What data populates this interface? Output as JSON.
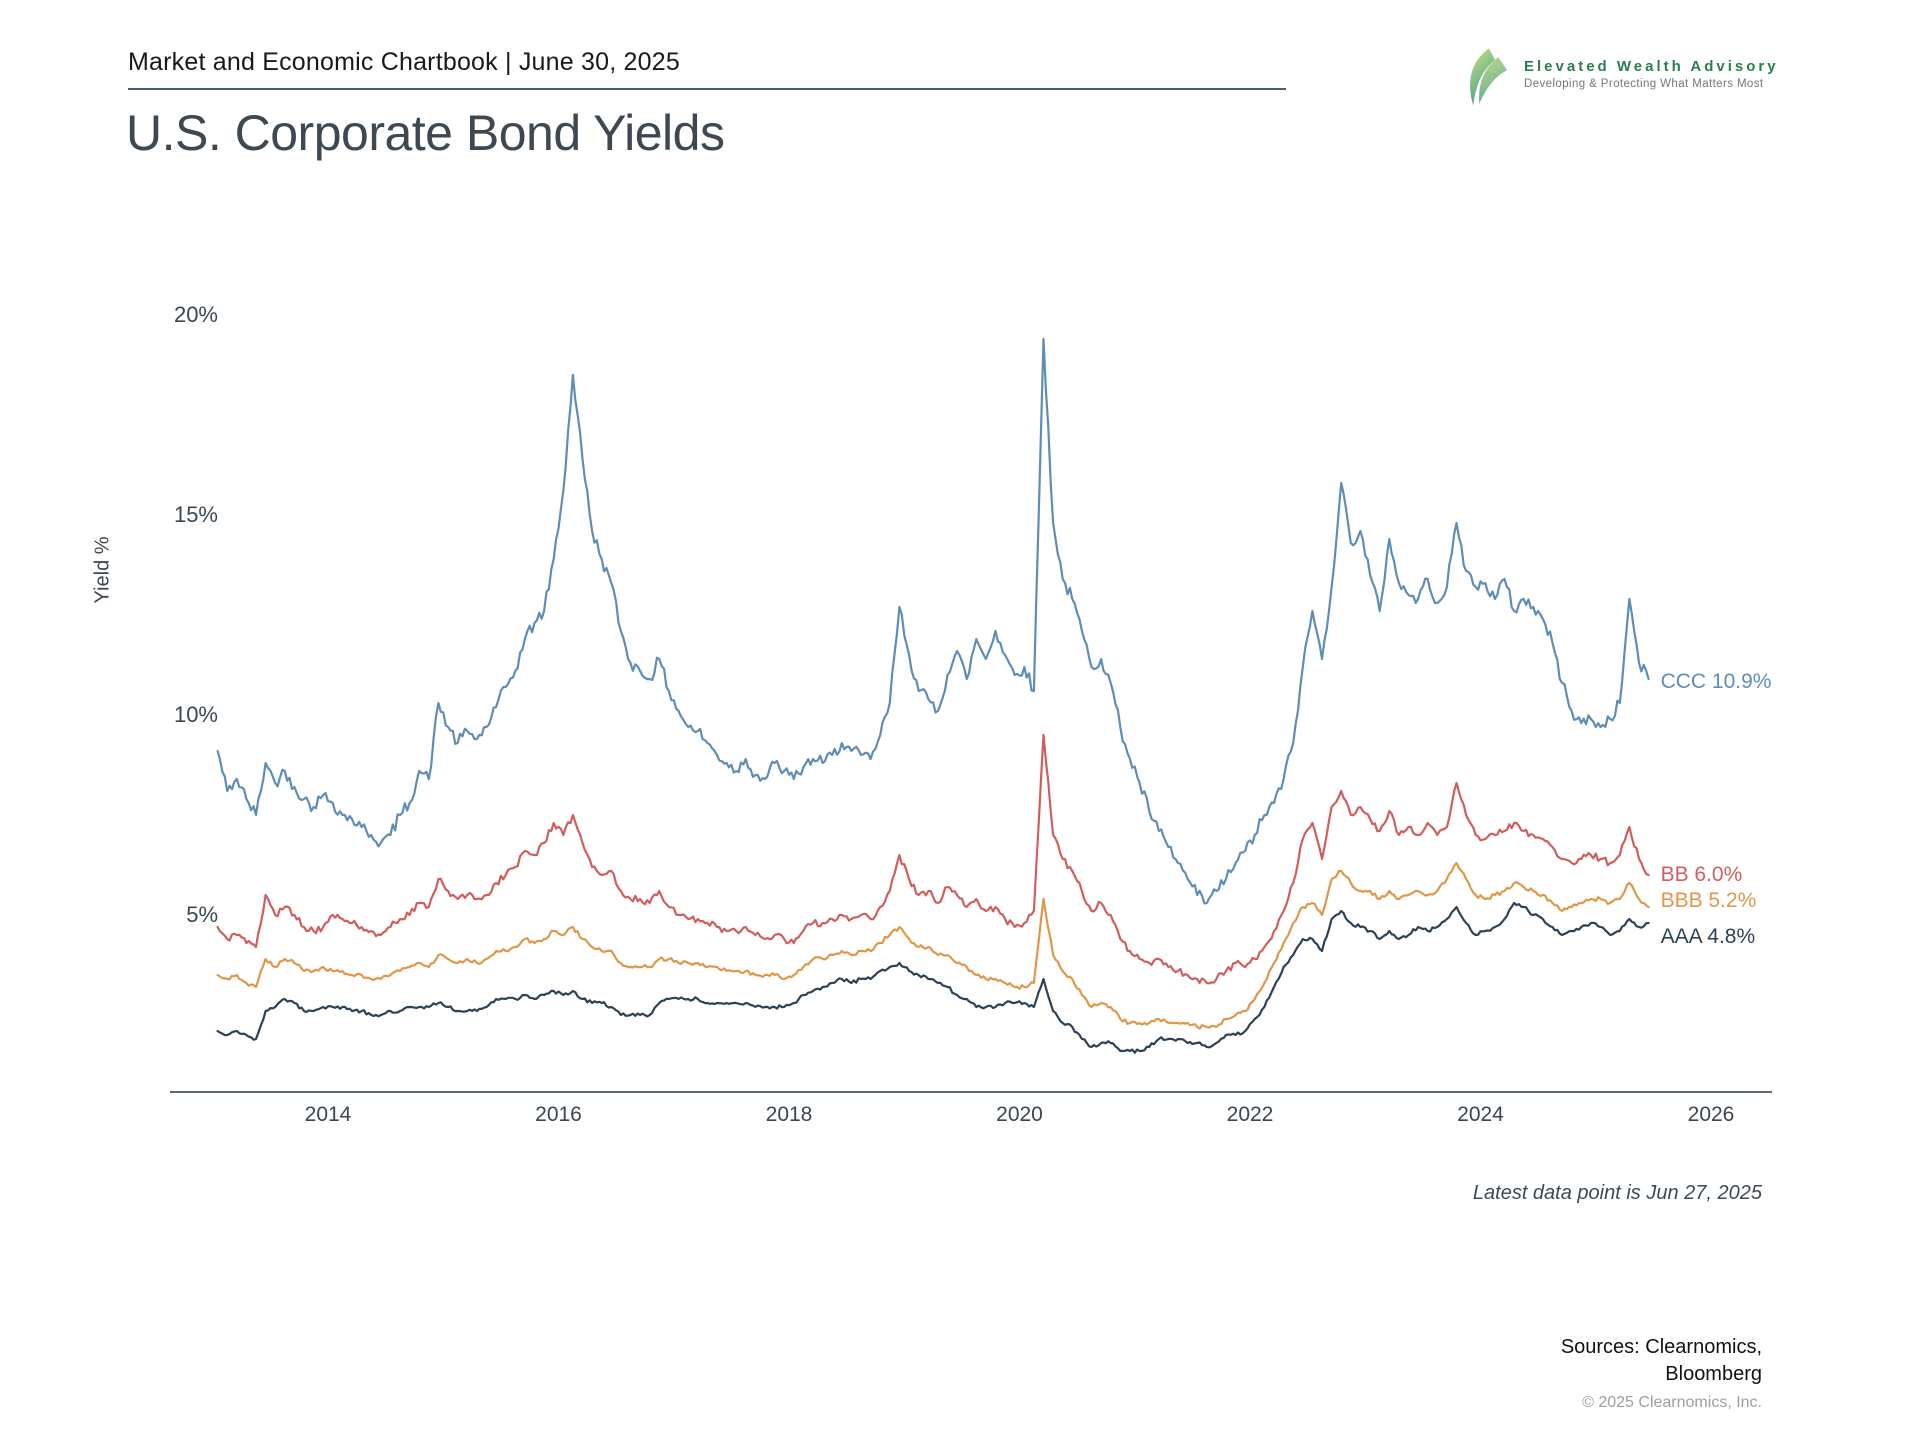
{
  "header": {
    "chartbook": "Market and Economic Chartbook | June 30, 2025",
    "title": "U.S. Corporate Bond Yields"
  },
  "logo": {
    "name": "Elevated Wealth Advisory",
    "tagline": "Developing & Protecting What Matters Most"
  },
  "footer": {
    "note": "Latest data point is Jun 27, 2025",
    "sources_line1": "Sources: Clearnomics,",
    "sources_line2": "Bloomberg",
    "copyright": "© 2025 Clearnomics, Inc."
  },
  "chart_data": {
    "type": "line",
    "title": "U.S. Corporate Bond Yields",
    "ylabel": "Yield %",
    "ylim": [
      0,
      21
    ],
    "x_range": [
      "2013-01",
      "2025-06"
    ],
    "frequency": "monthly",
    "grid": false,
    "legend_position": "line-end-labels",
    "y_ticks": [
      {
        "value": 5,
        "label": "5%"
      },
      {
        "value": 10,
        "label": "10%"
      },
      {
        "value": 15,
        "label": "15%"
      },
      {
        "value": 20,
        "label": "20%"
      }
    ],
    "x_ticks": [
      {
        "value": 2014,
        "label": "2014"
      },
      {
        "value": 2016,
        "label": "2016"
      },
      {
        "value": 2018,
        "label": "2018"
      },
      {
        "value": 2020,
        "label": "2020"
      },
      {
        "value": 2022,
        "label": "2022"
      },
      {
        "value": 2024,
        "label": "2024"
      },
      {
        "value": 2026,
        "label": "2026"
      }
    ],
    "series": [
      {
        "name": "CCC",
        "label": "CCC 10.9%",
        "latest": 10.9,
        "color": "#5f8db6",
        "values": [
          9.1,
          8.1,
          8.4,
          7.9,
          7.5,
          8.8,
          8.3,
          8.6,
          8.2,
          7.9,
          7.7,
          8.0,
          7.8,
          7.5,
          7.4,
          7.2,
          7.0,
          6.8,
          7.0,
          7.5,
          7.8,
          8.6,
          8.4,
          10.3,
          9.7,
          9.3,
          9.6,
          9.4,
          9.7,
          10.2,
          10.7,
          11.1,
          11.9,
          12.3,
          12.6,
          13.9,
          15.6,
          18.5,
          16.4,
          14.6,
          13.9,
          13.3,
          12.1,
          11.3,
          11.1,
          10.9,
          11.4,
          10.6,
          10.1,
          9.7,
          9.6,
          9.3,
          9.0,
          8.8,
          8.6,
          8.9,
          8.5,
          8.4,
          8.8,
          8.6,
          8.4,
          8.7,
          8.9,
          8.8,
          9.0,
          9.3,
          9.1,
          9.0,
          8.9,
          9.5,
          10.3,
          12.7,
          11.5,
          10.6,
          10.4,
          10.1,
          11.0,
          11.6,
          10.9,
          11.9,
          11.4,
          12.1,
          11.5,
          11.0,
          11.2,
          10.6,
          19.4,
          14.8,
          13.4,
          12.9,
          12.1,
          11.2,
          11.4,
          10.8,
          9.7,
          8.9,
          8.3,
          7.6,
          7.1,
          6.7,
          6.3,
          5.9,
          5.5,
          5.3,
          5.6,
          5.9,
          6.3,
          6.6,
          7.0,
          7.5,
          7.8,
          8.4,
          9.3,
          11.2,
          12.6,
          11.4,
          13.2,
          15.8,
          14.3,
          14.6,
          13.5,
          12.6,
          14.4,
          13.3,
          13.0,
          12.9,
          13.4,
          12.8,
          13.2,
          14.8,
          13.6,
          13.2,
          13.3,
          12.9,
          13.4,
          12.6,
          12.9,
          12.7,
          12.4,
          11.8,
          10.8,
          10.1,
          9.8,
          9.9,
          9.7,
          9.9,
          10.3,
          12.9,
          11.3,
          10.9
        ]
      },
      {
        "name": "BB",
        "label": "BB 6.0%",
        "latest": 6.0,
        "color": "#d05e5e",
        "values": [
          4.7,
          4.4,
          4.5,
          4.3,
          4.2,
          5.5,
          5.0,
          5.2,
          5.0,
          4.7,
          4.6,
          4.7,
          5.0,
          4.9,
          4.8,
          4.7,
          4.6,
          4.5,
          4.7,
          4.9,
          5.0,
          5.3,
          5.2,
          5.9,
          5.6,
          5.4,
          5.5,
          5.4,
          5.5,
          5.8,
          6.0,
          6.2,
          6.6,
          6.5,
          6.8,
          7.3,
          7.0,
          7.5,
          6.8,
          6.2,
          6.0,
          6.1,
          5.6,
          5.4,
          5.4,
          5.3,
          5.6,
          5.2,
          5.0,
          4.9,
          4.9,
          4.8,
          4.7,
          4.6,
          4.6,
          4.7,
          4.5,
          4.4,
          4.5,
          4.4,
          4.3,
          4.6,
          4.8,
          4.8,
          4.9,
          5.0,
          4.9,
          5.0,
          4.9,
          5.2,
          5.6,
          6.5,
          5.9,
          5.5,
          5.6,
          5.3,
          5.7,
          5.5,
          5.2,
          5.4,
          5.1,
          5.2,
          4.9,
          4.7,
          4.8,
          5.1,
          9.5,
          7.0,
          6.4,
          6.1,
          5.6,
          5.1,
          5.3,
          5.0,
          4.4,
          4.1,
          3.9,
          3.8,
          3.9,
          3.7,
          3.6,
          3.5,
          3.4,
          3.3,
          3.4,
          3.6,
          3.8,
          3.7,
          3.9,
          4.2,
          4.6,
          5.1,
          5.8,
          6.9,
          7.3,
          6.4,
          7.7,
          8.1,
          7.5,
          7.7,
          7.4,
          7.1,
          7.6,
          7.0,
          7.2,
          7.0,
          7.3,
          7.0,
          7.2,
          8.3,
          7.5,
          7.0,
          6.9,
          7.0,
          7.1,
          7.3,
          7.1,
          7.0,
          6.9,
          6.7,
          6.4,
          6.3,
          6.4,
          6.5,
          6.4,
          6.3,
          6.5,
          7.2,
          6.4,
          6.0
        ]
      },
      {
        "name": "BBB",
        "label": "BBB 5.2%",
        "latest": 5.2,
        "color": "#df9748",
        "values": [
          3.5,
          3.4,
          3.5,
          3.3,
          3.2,
          3.9,
          3.7,
          3.9,
          3.8,
          3.6,
          3.6,
          3.7,
          3.6,
          3.6,
          3.5,
          3.5,
          3.4,
          3.4,
          3.5,
          3.6,
          3.7,
          3.8,
          3.7,
          4.0,
          3.9,
          3.8,
          3.9,
          3.8,
          3.9,
          4.1,
          4.1,
          4.2,
          4.4,
          4.3,
          4.4,
          4.6,
          4.5,
          4.7,
          4.4,
          4.2,
          4.1,
          4.1,
          3.8,
          3.7,
          3.7,
          3.7,
          3.9,
          3.9,
          3.8,
          3.8,
          3.8,
          3.7,
          3.7,
          3.6,
          3.6,
          3.6,
          3.5,
          3.5,
          3.5,
          3.4,
          3.5,
          3.7,
          3.9,
          3.9,
          4.0,
          4.1,
          4.0,
          4.1,
          4.1,
          4.3,
          4.5,
          4.7,
          4.4,
          4.2,
          4.2,
          4.0,
          4.0,
          3.8,
          3.7,
          3.5,
          3.4,
          3.4,
          3.3,
          3.2,
          3.2,
          3.3,
          5.4,
          4.0,
          3.6,
          3.4,
          3.0,
          2.7,
          2.8,
          2.7,
          2.4,
          2.3,
          2.3,
          2.3,
          2.4,
          2.3,
          2.3,
          2.3,
          2.2,
          2.2,
          2.2,
          2.4,
          2.5,
          2.6,
          2.9,
          3.3,
          3.8,
          4.3,
          4.8,
          5.2,
          5.3,
          5.0,
          5.9,
          6.1,
          5.8,
          5.6,
          5.6,
          5.4,
          5.6,
          5.4,
          5.5,
          5.6,
          5.5,
          5.6,
          5.9,
          6.3,
          5.9,
          5.5,
          5.4,
          5.5,
          5.6,
          5.8,
          5.7,
          5.6,
          5.5,
          5.3,
          5.1,
          5.2,
          5.3,
          5.4,
          5.4,
          5.3,
          5.4,
          5.8,
          5.4,
          5.2
        ]
      },
      {
        "name": "AAA",
        "label": "AAA 4.8%",
        "latest": 4.8,
        "color": "#2d4257",
        "values": [
          2.1,
          2.0,
          2.1,
          2.0,
          1.9,
          2.6,
          2.7,
          2.9,
          2.8,
          2.6,
          2.6,
          2.7,
          2.7,
          2.7,
          2.6,
          2.6,
          2.5,
          2.5,
          2.6,
          2.6,
          2.7,
          2.7,
          2.7,
          2.8,
          2.7,
          2.6,
          2.6,
          2.6,
          2.7,
          2.9,
          2.9,
          2.9,
          3.0,
          2.9,
          3.0,
          3.1,
          3.0,
          3.1,
          2.9,
          2.8,
          2.8,
          2.7,
          2.5,
          2.5,
          2.5,
          2.5,
          2.8,
          2.9,
          2.9,
          2.9,
          2.9,
          2.8,
          2.8,
          2.8,
          2.8,
          2.8,
          2.7,
          2.7,
          2.7,
          2.7,
          2.8,
          3.0,
          3.1,
          3.2,
          3.3,
          3.4,
          3.3,
          3.4,
          3.4,
          3.6,
          3.7,
          3.8,
          3.6,
          3.5,
          3.4,
          3.3,
          3.2,
          3.0,
          2.9,
          2.7,
          2.7,
          2.7,
          2.8,
          2.8,
          2.8,
          2.7,
          3.4,
          2.6,
          2.3,
          2.2,
          1.9,
          1.7,
          1.8,
          1.8,
          1.6,
          1.6,
          1.6,
          1.7,
          1.9,
          1.9,
          1.9,
          1.8,
          1.8,
          1.7,
          1.8,
          2.0,
          2.0,
          2.1,
          2.4,
          2.7,
          3.2,
          3.7,
          4.0,
          4.4,
          4.4,
          4.1,
          4.9,
          5.1,
          4.8,
          4.7,
          4.6,
          4.4,
          4.6,
          4.4,
          4.5,
          4.7,
          4.6,
          4.7,
          4.9,
          5.2,
          4.8,
          4.5,
          4.6,
          4.7,
          4.9,
          5.3,
          5.2,
          5.0,
          4.9,
          4.7,
          4.5,
          4.6,
          4.7,
          4.8,
          4.7,
          4.5,
          4.6,
          4.9,
          4.7,
          4.8
        ]
      }
    ]
  }
}
